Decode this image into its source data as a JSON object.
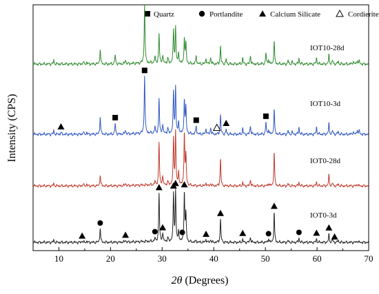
{
  "chart_data": {
    "type": "line",
    "xlabel": "2θ (Degrees)",
    "xlabel_parts": {
      "symbol": "2θ",
      "rest": " (Degrees)"
    },
    "ylabel": "Intensity (CPS)",
    "xlim": [
      5,
      70
    ],
    "x_ticks": [
      10,
      20,
      30,
      40,
      50,
      60,
      70
    ],
    "y_ticks_shown": false,
    "grid": false,
    "legend_placement": "top",
    "legend": [
      {
        "label": "Quartz",
        "marker": "filled-square"
      },
      {
        "label": "Portlandite",
        "marker": "filled-circle"
      },
      {
        "label": "Calcium Silicate",
        "marker": "filled-triangle"
      },
      {
        "label": "Cordierite",
        "marker": "open-triangle"
      }
    ],
    "series": [
      {
        "name": "IOT10-28d",
        "color": "#2e8b2e",
        "baseline": 93,
        "peaks": [
          [
            9,
            0.06
          ],
          [
            14.7,
            0.04
          ],
          [
            15.4,
            0.03
          ],
          [
            18.0,
            0.25
          ],
          [
            20.9,
            0.15
          ],
          [
            22.9,
            0.07
          ],
          [
            26.6,
            1.0
          ],
          [
            28.6,
            0.1
          ],
          [
            29.4,
            0.48
          ],
          [
            30.1,
            0.12
          ],
          [
            31.1,
            0.08
          ],
          [
            32.2,
            0.55
          ],
          [
            32.6,
            0.6
          ],
          [
            33.2,
            0.18
          ],
          [
            34.3,
            0.45
          ],
          [
            34.6,
            0.34
          ],
          [
            36.6,
            0.14
          ],
          [
            38.5,
            0.1
          ],
          [
            39.4,
            0.12
          ],
          [
            41.3,
            0.3
          ],
          [
            42.4,
            0.08
          ],
          [
            45.6,
            0.1
          ],
          [
            47.1,
            0.15
          ],
          [
            50.1,
            0.18
          ],
          [
            50.6,
            0.08
          ],
          [
            51.7,
            0.38
          ],
          [
            54.4,
            0.06
          ],
          [
            55.2,
            0.04
          ],
          [
            56.5,
            0.1
          ],
          [
            59.9,
            0.1
          ],
          [
            62.3,
            0.15
          ],
          [
            63.0,
            0.06
          ],
          [
            64.1,
            0.05
          ],
          [
            67.0,
            0.05
          ],
          [
            67.8,
            0.07
          ],
          [
            68.2,
            0.05
          ]
        ]
      },
      {
        "name": "IOT10-3d",
        "color": "#2f56c4",
        "baseline": 195,
        "peaks": [
          [
            9,
            0.06
          ],
          [
            10.4,
            0.03
          ],
          [
            14.7,
            0.04
          ],
          [
            15.4,
            0.03
          ],
          [
            18.0,
            0.3
          ],
          [
            20.9,
            0.18
          ],
          [
            22.9,
            0.07
          ],
          [
            26.6,
            1.0
          ],
          [
            28.6,
            0.1
          ],
          [
            29.4,
            0.58
          ],
          [
            30.1,
            0.14
          ],
          [
            31.1,
            0.08
          ],
          [
            32.2,
            0.7
          ],
          [
            32.6,
            0.78
          ],
          [
            33.2,
            0.2
          ],
          [
            34.3,
            0.6
          ],
          [
            34.6,
            0.45
          ],
          [
            36.6,
            0.14
          ],
          [
            38.5,
            0.1
          ],
          [
            39.4,
            0.12
          ],
          [
            41.3,
            0.33
          ],
          [
            42.4,
            0.08
          ],
          [
            45.6,
            0.1
          ],
          [
            47.1,
            0.15
          ],
          [
            50.1,
            0.2
          ],
          [
            50.6,
            0.08
          ],
          [
            51.7,
            0.42
          ],
          [
            54.4,
            0.06
          ],
          [
            55.2,
            0.04
          ],
          [
            56.5,
            0.12
          ],
          [
            59.9,
            0.12
          ],
          [
            62.3,
            0.18
          ],
          [
            63.0,
            0.06
          ],
          [
            64.1,
            0.05
          ],
          [
            67.0,
            0.05
          ],
          [
            67.8,
            0.08
          ],
          [
            68.2,
            0.06
          ]
        ]
      },
      {
        "name": "IOT0-28d",
        "color": "#c0392b",
        "baseline": 270,
        "peaks": [
          [
            9,
            0.04
          ],
          [
            14.7,
            0.04
          ],
          [
            15.4,
            0.03
          ],
          [
            18.0,
            0.2
          ],
          [
            22.9,
            0.05
          ],
          [
            28.6,
            0.06
          ],
          [
            29.4,
            0.78
          ],
          [
            30.1,
            0.16
          ],
          [
            31.1,
            0.06
          ],
          [
            32.2,
            0.86
          ],
          [
            32.6,
            0.98
          ],
          [
            33.2,
            0.25
          ],
          [
            34.3,
            1.0
          ],
          [
            34.6,
            0.55
          ],
          [
            38.5,
            0.06
          ],
          [
            39.4,
            0.05
          ],
          [
            41.3,
            0.5
          ],
          [
            45.6,
            0.06
          ],
          [
            47.1,
            0.12
          ],
          [
            50.6,
            0.05
          ],
          [
            51.7,
            0.62
          ],
          [
            54.4,
            0.04
          ],
          [
            56.5,
            0.07
          ],
          [
            59.9,
            0.07
          ],
          [
            62.3,
            0.2
          ],
          [
            63.0,
            0.05
          ],
          [
            64.1,
            0.04
          ],
          [
            67.8,
            0.04
          ]
        ]
      },
      {
        "name": "IOT0-3d",
        "color": "#222222",
        "baseline": 352,
        "peaks": [
          [
            9,
            0.04
          ],
          [
            14.5,
            0.03
          ],
          [
            15.4,
            0.02
          ],
          [
            18.0,
            0.26
          ],
          [
            22.9,
            0.04
          ],
          [
            28.6,
            0.05
          ],
          [
            29.4,
            0.86
          ],
          [
            30.1,
            0.14
          ],
          [
            31.1,
            0.06
          ],
          [
            32.2,
            0.86
          ],
          [
            32.6,
            0.9
          ],
          [
            33.2,
            0.2
          ],
          [
            34.3,
            0.92
          ],
          [
            34.6,
            0.5
          ],
          [
            36.6,
            0.03
          ],
          [
            38.5,
            0.06
          ],
          [
            39.4,
            0.05
          ],
          [
            41.3,
            0.42
          ],
          [
            45.6,
            0.05
          ],
          [
            47.1,
            0.1
          ],
          [
            50.6,
            0.07
          ],
          [
            51.7,
            0.54
          ],
          [
            54.4,
            0.03
          ],
          [
            56.5,
            0.08
          ],
          [
            59.9,
            0.06
          ],
          [
            62.3,
            0.14
          ],
          [
            63.0,
            0.05
          ],
          [
            64.1,
            0.04
          ],
          [
            67.8,
            0.03
          ]
        ]
      }
    ],
    "phase_markers": [
      {
        "series": "IOT10-3d",
        "type": "filled-square",
        "x": 20.9
      },
      {
        "series": "IOT10-3d",
        "type": "filled-square",
        "x": 26.6
      },
      {
        "series": "IOT10-3d",
        "type": "filled-square",
        "x": 36.6
      },
      {
        "series": "IOT10-3d",
        "type": "filled-square",
        "x": 50.1
      },
      {
        "series": "IOT10-3d",
        "type": "filled-triangle",
        "x": 10.4
      },
      {
        "series": "IOT10-3d",
        "type": "filled-triangle",
        "x": 42.4
      },
      {
        "series": "IOT10-3d",
        "type": "open-triangle",
        "x": 40.6
      },
      {
        "series": "IOT0-3d",
        "type": "filled-circle",
        "x": 18.0
      },
      {
        "series": "IOT0-3d",
        "type": "filled-circle",
        "x": 28.6
      },
      {
        "series": "IOT0-3d",
        "type": "filled-circle",
        "x": 33.9
      },
      {
        "series": "IOT0-3d",
        "type": "filled-circle",
        "x": 50.6
      },
      {
        "series": "IOT0-3d",
        "type": "filled-circle",
        "x": 56.5
      },
      {
        "series": "IOT0-3d",
        "type": "filled-triangle",
        "x": 14.5
      },
      {
        "series": "IOT0-3d",
        "type": "filled-triangle",
        "x": 22.9
      },
      {
        "series": "IOT0-3d",
        "type": "filled-triangle",
        "x": 29.4
      },
      {
        "series": "IOT0-3d",
        "type": "filled-triangle",
        "x": 30.1
      },
      {
        "series": "IOT0-3d",
        "type": "filled-triangle",
        "x": 32.2
      },
      {
        "series": "IOT0-3d",
        "type": "filled-triangle",
        "x": 32.6
      },
      {
        "series": "IOT0-3d",
        "type": "filled-triangle",
        "x": 34.3
      },
      {
        "series": "IOT0-3d",
        "type": "filled-triangle",
        "x": 38.5
      },
      {
        "series": "IOT0-3d",
        "type": "filled-triangle",
        "x": 41.3
      },
      {
        "series": "IOT0-3d",
        "type": "filled-triangle",
        "x": 45.6
      },
      {
        "series": "IOT0-3d",
        "type": "filled-triangle",
        "x": 51.7
      },
      {
        "series": "IOT0-3d",
        "type": "filled-triangle",
        "x": 59.9
      },
      {
        "series": "IOT0-3d",
        "type": "filled-triangle",
        "x": 62.3
      },
      {
        "series": "IOT0-3d",
        "type": "filled-triangle",
        "x": 63.4
      }
    ]
  }
}
